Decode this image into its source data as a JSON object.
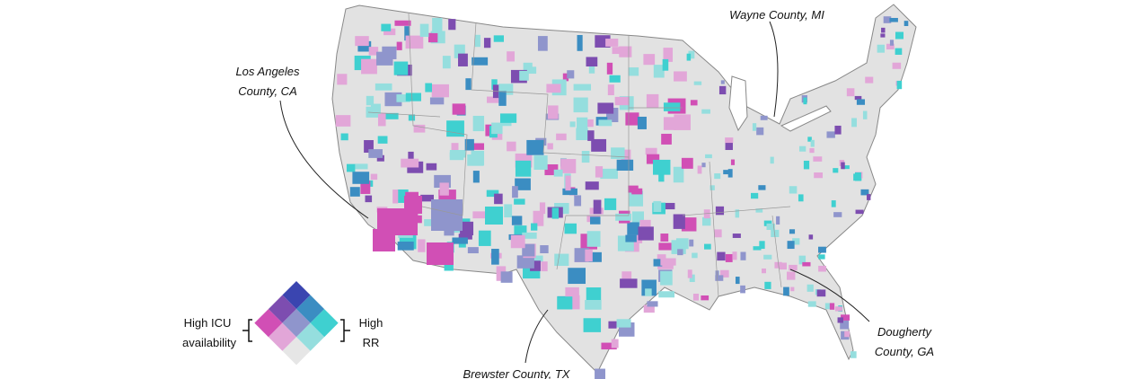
{
  "annotations": [
    {
      "lines": [
        "Wayne County, MI"
      ]
    },
    {
      "lines": [
        "Los Angeles",
        "County, CA"
      ]
    },
    {
      "lines": [
        "Brewster County, TX"
      ]
    },
    {
      "lines": [
        "Dougherty",
        "County, GA"
      ]
    }
  ],
  "legend": {
    "left": [
      "High ICU",
      "availability"
    ],
    "right": [
      "High",
      "RR"
    ]
  }
}
